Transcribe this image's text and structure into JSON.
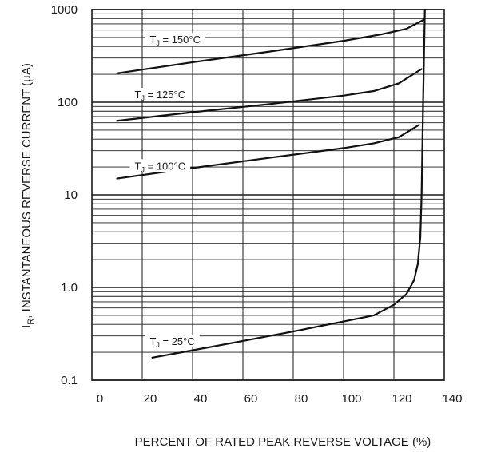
{
  "chart_data": {
    "type": "line",
    "xlabel": "PERCENT OF RATED PEAK REVERSE VOLTAGE (%)",
    "ylabel_main": "I",
    "ylabel_sub": "R",
    "ylabel_rest": ", INSTANTANEOUS REVERSE CURRENT (µA)",
    "xlim": [
      0,
      140
    ],
    "ylim": [
      0.1,
      1000
    ],
    "yscale": "log",
    "grid": true,
    "x_ticks": [
      "0",
      "20",
      "40",
      "60",
      "80",
      "100",
      "120",
      "140"
    ],
    "x_tick_values": [
      0,
      20,
      40,
      60,
      80,
      100,
      120,
      140
    ],
    "y_ticks": [
      "0.1",
      "1.0",
      "10",
      "100",
      "1000"
    ],
    "y_tick_values": [
      0.1,
      1,
      10,
      100,
      1000
    ],
    "series": [
      {
        "label_main": "T",
        "label_sub": "J",
        "label_rest": " = 150°C",
        "label_at": [
          23,
          450
        ],
        "points": [
          [
            10,
            205
          ],
          [
            40,
            270
          ],
          [
            70,
            350
          ],
          [
            100,
            460
          ],
          [
            115,
            540
          ],
          [
            125,
            620
          ],
          [
            132,
            780
          ]
        ]
      },
      {
        "label_main": "T",
        "label_sub": "J",
        "label_rest": " = 125°C",
        "label_at": [
          17,
          115
        ],
        "points": [
          [
            10,
            63
          ],
          [
            40,
            78
          ],
          [
            70,
            95
          ],
          [
            100,
            118
          ],
          [
            112,
            132
          ],
          [
            122,
            160
          ],
          [
            131,
            228
          ]
        ]
      },
      {
        "label_main": "T",
        "label_sub": "J",
        "label_rest": " = 100°C",
        "label_at": [
          17,
          19.5
        ],
        "points": [
          [
            10,
            15
          ],
          [
            40,
            19.5
          ],
          [
            70,
            25
          ],
          [
            100,
            32
          ],
          [
            112,
            36
          ],
          [
            122,
            42
          ],
          [
            130,
            57
          ]
        ]
      },
      {
        "label_main": "T",
        "label_sub": "J",
        "label_rest": " = 25°C",
        "label_at": [
          23,
          0.25
        ],
        "points": [
          [
            24,
            0.175
          ],
          [
            40,
            0.21
          ],
          [
            60,
            0.265
          ],
          [
            80,
            0.335
          ],
          [
            100,
            0.43
          ],
          [
            112,
            0.5
          ],
          [
            120,
            0.65
          ],
          [
            125,
            0.85
          ],
          [
            128,
            1.2
          ],
          [
            129.5,
            1.8
          ],
          [
            130.5,
            3.5
          ],
          [
            131,
            10
          ],
          [
            131.6,
            100
          ],
          [
            132.3,
            1000
          ]
        ]
      }
    ]
  }
}
